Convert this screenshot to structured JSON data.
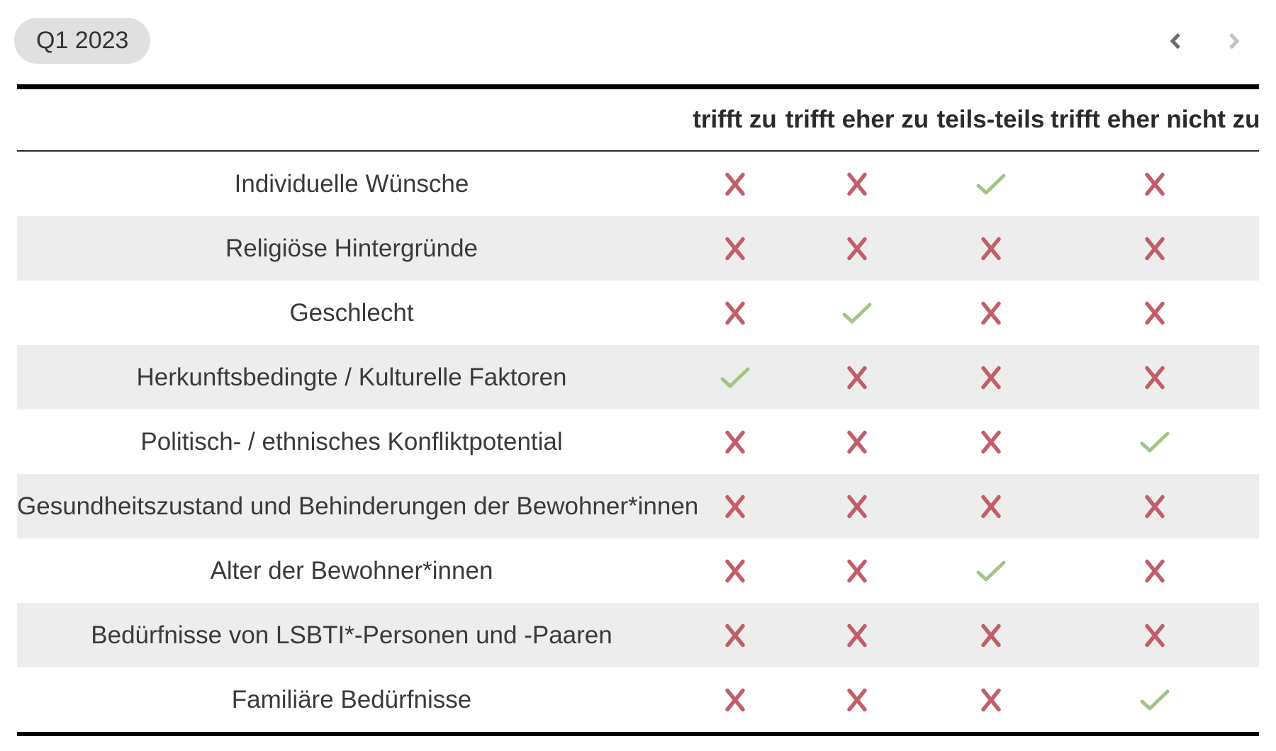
{
  "toolbar": {
    "period_label": "Q1 2023",
    "prev_icon": "chevron-left",
    "next_icon": "chevron-right"
  },
  "colors": {
    "x_mark": "#c25e68",
    "check_mark": "#a3c484",
    "row_stripe": "#ededed",
    "chip_bg": "#e0e0e0",
    "text": "#333333",
    "chevron_enabled": "#6b6b6b",
    "chevron_disabled": "#c4c4c4"
  },
  "table": {
    "columns": [
      "trifft zu",
      "trifft eher zu",
      "teils-teils",
      "trifft eher nicht zu"
    ],
    "rows": [
      {
        "label": "Individuelle Wünsche",
        "values": [
          "x",
          "x",
          "check",
          "x"
        ]
      },
      {
        "label": "Religiöse Hintergründe",
        "values": [
          "x",
          "x",
          "x",
          "x"
        ]
      },
      {
        "label": "Geschlecht",
        "values": [
          "x",
          "check",
          "x",
          "x"
        ]
      },
      {
        "label": "Herkunftsbedingte / Kulturelle Faktoren",
        "values": [
          "check",
          "x",
          "x",
          "x"
        ]
      },
      {
        "label": "Politisch- / ethnisches Konfliktpotential",
        "values": [
          "x",
          "x",
          "x",
          "check"
        ]
      },
      {
        "label": "Gesundheitszustand und Behinderungen der Bewohner*innen",
        "values": [
          "x",
          "x",
          "x",
          "x"
        ]
      },
      {
        "label": "Alter der Bewohner*innen",
        "values": [
          "x",
          "x",
          "check",
          "x"
        ]
      },
      {
        "label": "Bedürfnisse von LSBTI*-Personen und -Paaren",
        "values": [
          "x",
          "x",
          "x",
          "x"
        ]
      },
      {
        "label": "Familiäre Bedürfnisse",
        "values": [
          "x",
          "x",
          "x",
          "check"
        ]
      }
    ]
  }
}
